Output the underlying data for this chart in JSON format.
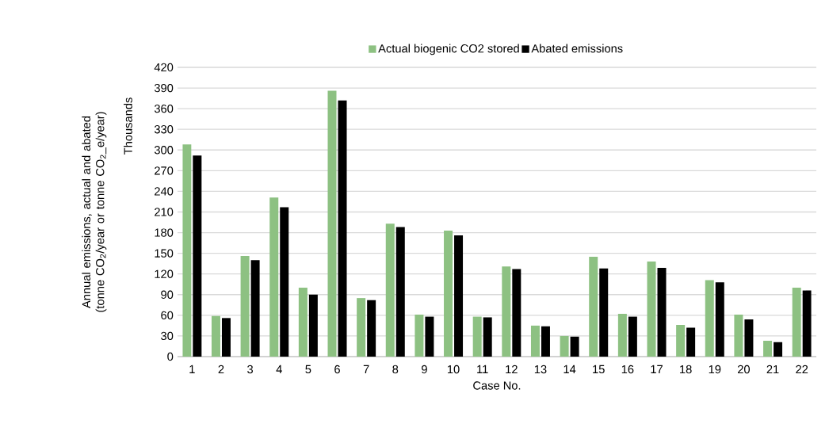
{
  "chart_data": {
    "type": "bar",
    "ylabel": "Annual emissions, actual and abated (tonne CO$_{2}$/year or tonne CO$_{2}$_e/year)",
    "xlabel": "Case No.",
    "annotations": [
      "Thousands"
    ],
    "categories": [
      "1",
      "2",
      "3",
      "4",
      "5",
      "6",
      "7",
      "8",
      "9",
      "10",
      "11",
      "12",
      "13",
      "14",
      "15",
      "16",
      "17",
      "18",
      "19",
      "20",
      "21",
      "22"
    ],
    "series": [
      {
        "name": "Actual biogenic CO2 stored",
        "color": "#8dc182",
        "values": [
          308,
          59,
          146,
          231,
          100,
          386,
          85,
          193,
          61,
          183,
          58,
          131,
          45,
          30,
          145,
          62,
          138,
          46,
          111,
          61,
          23,
          100
        ]
      },
      {
        "name": "Abated emissions",
        "color": "#000000",
        "values": [
          292,
          56,
          140,
          217,
          90,
          372,
          82,
          188,
          58,
          176,
          57,
          127,
          44,
          29,
          128,
          58,
          129,
          42,
          108,
          54,
          21,
          96
        ]
      }
    ],
    "ylim": [
      0,
      420
    ],
    "yticks": [
      0,
      30,
      60,
      90,
      120,
      150,
      180,
      210,
      240,
      270,
      300,
      330,
      360,
      390,
      420
    ],
    "grid": "y",
    "legend": "top"
  }
}
